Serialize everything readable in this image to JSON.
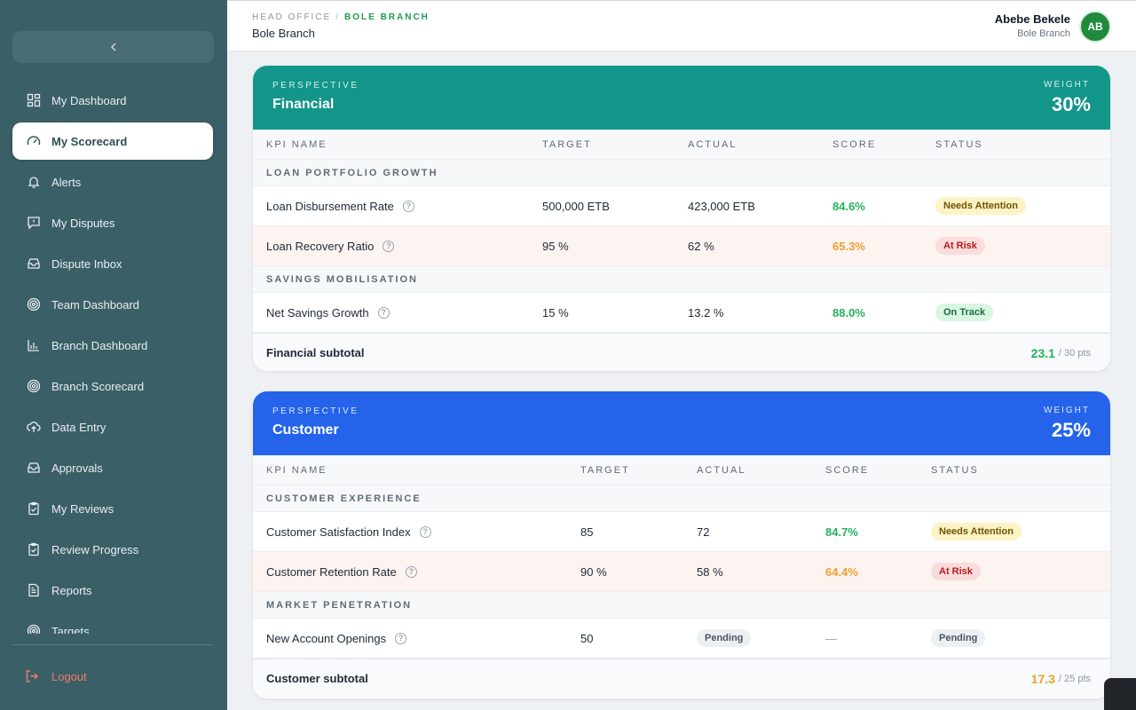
{
  "sidebar": {
    "items": [
      {
        "label": "My Dashboard",
        "icon": "grid-icon"
      },
      {
        "label": "My Scorecard",
        "icon": "gauge-icon",
        "active": true
      },
      {
        "label": "Alerts",
        "icon": "bell-icon"
      },
      {
        "label": "My Disputes",
        "icon": "alert-message-icon"
      },
      {
        "label": "Dispute Inbox",
        "icon": "inbox-icon"
      },
      {
        "label": "Team Dashboard",
        "icon": "target-icon"
      },
      {
        "label": "Branch Dashboard",
        "icon": "bar-chart-icon"
      },
      {
        "label": "Branch Scorecard",
        "icon": "target-icon"
      },
      {
        "label": "Data Entry",
        "icon": "upload-icon"
      },
      {
        "label": "Approvals",
        "icon": "inbox-icon"
      },
      {
        "label": "My Reviews",
        "icon": "clipboard-check-icon"
      },
      {
        "label": "Review Progress",
        "icon": "clipboard-check-icon"
      },
      {
        "label": "Reports",
        "icon": "file-icon"
      },
      {
        "label": "Targets",
        "icon": "target-icon"
      }
    ],
    "logout_label": "Logout"
  },
  "header": {
    "breadcrumb": [
      "HEAD OFFICE",
      "BOLE BRANCH"
    ],
    "breadcrumb_sep": "/",
    "subtitle": "Bole Branch",
    "user_name": "Abebe Bekele",
    "user_branch": "Bole Branch",
    "avatar_initials": "AB"
  },
  "columns": [
    "KPI NAME",
    "TARGET",
    "ACTUAL",
    "SCORE",
    "STATUS"
  ],
  "perspectives": [
    {
      "label": "PERSPECTIVE",
      "name": "Financial",
      "weight_label": "WEIGHT",
      "weight": "30%",
      "color": "#12968a",
      "groups": [
        {
          "name": "LOAN PORTFOLIO GROWTH",
          "kpis": [
            {
              "name": "Loan Disbursement Rate",
              "target": "500,000 ETB",
              "actual": "423,000 ETB",
              "score": "84.6%",
              "status": "Needs Attention"
            },
            {
              "name": "Loan Recovery Ratio",
              "target": "95 %",
              "actual": "62 %",
              "score": "65.3%",
              "status": "At Risk"
            }
          ]
        },
        {
          "name": "SAVINGS MOBILISATION",
          "kpis": [
            {
              "name": "Net Savings Growth",
              "target": "15 %",
              "actual": "13.2 %",
              "score": "88.0%",
              "status": "On Track"
            }
          ]
        }
      ],
      "subtotal_label": "Financial subtotal",
      "subtotal_value": "23.1",
      "subtotal_pts": "/ 30 pts"
    },
    {
      "label": "PERSPECTIVE",
      "name": "Customer",
      "weight_label": "WEIGHT",
      "weight": "25%",
      "color": "#2563eb",
      "groups": [
        {
          "name": "CUSTOMER EXPERIENCE",
          "kpis": [
            {
              "name": "Customer Satisfaction Index",
              "target": "85",
              "actual": "72",
              "score": "84.7%",
              "status": "Needs Attention"
            },
            {
              "name": "Customer Retention Rate",
              "target": "90 %",
              "actual": "58 %",
              "score": "64.4%",
              "status": "At Risk"
            }
          ]
        },
        {
          "name": "MARKET PENETRATION",
          "kpis": [
            {
              "name": "New Account Openings",
              "target": "50",
              "actual": "Pending",
              "score": "—",
              "status": "Pending"
            }
          ]
        }
      ],
      "subtotal_label": "Customer subtotal",
      "subtotal_value": "17.3",
      "subtotal_pts": "/ 25 pts"
    }
  ]
}
